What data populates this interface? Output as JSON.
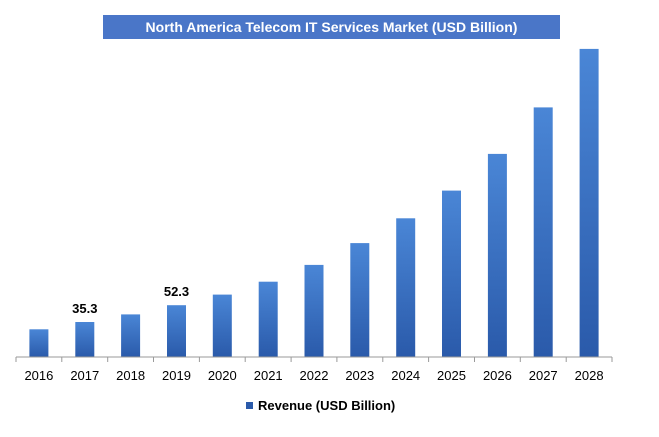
{
  "chart_data": {
    "type": "bar",
    "title": "North America Telecom IT Services Market (USD Billion)",
    "xlabel": "",
    "ylabel": "",
    "categories": [
      "2016",
      "2017",
      "2018",
      "2019",
      "2020",
      "2021",
      "2022",
      "2023",
      "2024",
      "2025",
      "2026",
      "2027",
      "2028"
    ],
    "series": [
      {
        "name": "Revenue (USD Billion)",
        "values": [
          28.0,
          35.3,
          43.0,
          52.3,
          63.0,
          76.0,
          93.0,
          115.0,
          140.0,
          168.0,
          205.0,
          252.0,
          311.0
        ]
      }
    ],
    "data_labels": [
      "",
      "35.3",
      "",
      "52.3",
      "",
      "",
      "",
      "",
      "",
      "",
      "",
      "",
      ""
    ],
    "ylim": [
      0,
      320
    ],
    "grid": false,
    "legend_position": "bottom",
    "colors": {
      "bar_top": "#4a86d6",
      "bar_bottom": "#2a5aaa",
      "title_background": "#4a76c8",
      "title_text": "#ffffff",
      "axis": "#9a9a9a"
    }
  }
}
